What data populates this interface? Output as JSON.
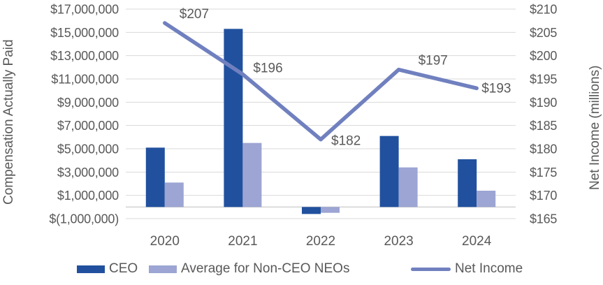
{
  "chart_data": {
    "type": "combo-bar-line",
    "title": "",
    "categories": [
      "2020",
      "2021",
      "2022",
      "2023",
      "2024"
    ],
    "series": [
      {
        "name": "CEO",
        "type": "bar",
        "axis": "left",
        "color": "#21519E",
        "values": [
          5100000,
          15300000,
          -600000,
          6100000,
          4100000
        ]
      },
      {
        "name": "Average for Non-CEO NEOs",
        "type": "bar",
        "axis": "left",
        "color": "#9CA5D3",
        "values": [
          2100000,
          5500000,
          -500000,
          3400000,
          1400000
        ]
      },
      {
        "name": "Net Income",
        "type": "line",
        "axis": "right",
        "color": "#7080BF",
        "values": [
          207,
          196,
          182,
          197,
          193
        ],
        "point_labels": [
          "$207",
          "$196",
          "$182",
          "$197",
          "$193"
        ]
      }
    ],
    "left_axis": {
      "title": "Compensation Actually Paid",
      "min": -1000000,
      "max": 17000000,
      "tick_step": 2000000,
      "tick_labels": [
        "$17,000,000",
        "$15,000,000",
        "$13,000,000",
        "$11,000,000",
        "$9,000,000",
        "$7,000,000",
        "$5,000,000",
        "$3,000,000",
        "$1,000,000",
        "$(1,000,000)"
      ]
    },
    "right_axis": {
      "title": "Net Income (millions)",
      "min": 165,
      "max": 210,
      "tick_step": 5,
      "tick_labels": [
        "$210",
        "$205",
        "$200",
        "$195",
        "$190",
        "$185",
        "$180",
        "$175",
        "$170",
        "$165"
      ]
    },
    "legend": [
      {
        "label": "CEO",
        "swatch": "bar",
        "color": "#21519E"
      },
      {
        "label": "Average for Non-CEO NEOs",
        "swatch": "bar",
        "color": "#9CA5D3"
      },
      {
        "label": "Net Income",
        "swatch": "line",
        "color": "#7080BF"
      }
    ],
    "grid": true,
    "legend_position": "bottom",
    "colors": {
      "gridline": "#D9D9D9",
      "baseline": "#C4C4C4",
      "text": "#595959"
    }
  }
}
